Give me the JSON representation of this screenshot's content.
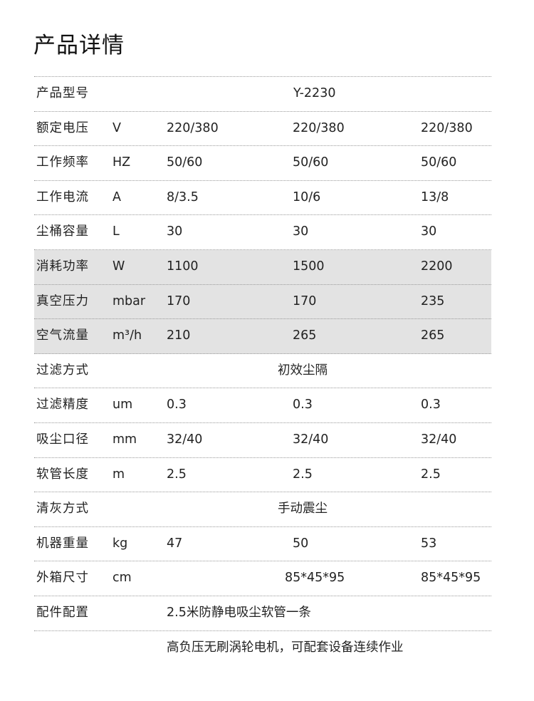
{
  "title": "产品详情",
  "rows": [
    {
      "label": "产品型号",
      "merged": "Y-2230",
      "type": "model"
    },
    {
      "label": "额定电压",
      "unit": "V",
      "values": [
        "220/380",
        "220/380",
        "220/380"
      ]
    },
    {
      "label": "工作频率",
      "unit": "HZ",
      "values": [
        "50/60",
        "50/60",
        "50/60"
      ]
    },
    {
      "label": "工作电流",
      "unit": "A",
      "values": [
        "8/3.5",
        "10/6",
        "13/8"
      ]
    },
    {
      "label": "尘桶容量",
      "unit": "L",
      "values": [
        "30",
        "30",
        "30"
      ]
    },
    {
      "label": "消耗功率",
      "unit": "W",
      "values": [
        "1100",
        "1500",
        "2200"
      ],
      "shaded": true
    },
    {
      "label": "真空压力",
      "unit": "mbar",
      "values": [
        "170",
        "170",
        "235"
      ],
      "shaded": true
    },
    {
      "label": "空气流量",
      "unit": "m³/h",
      "values": [
        "210",
        "265",
        "265"
      ],
      "shaded": true
    },
    {
      "label": "过滤方式",
      "merged": "初效尘隔"
    },
    {
      "label": "过滤精度",
      "unit": "um",
      "values": [
        "0.3",
        "0.3",
        "0.3"
      ]
    },
    {
      "label": "吸尘口径",
      "unit": "mm",
      "values": [
        "32/40",
        "32/40",
        "32/40"
      ]
    },
    {
      "label": "软管长度",
      "unit": "m",
      "values": [
        "2.5",
        "2.5",
        "2.5"
      ]
    },
    {
      "label": "清灰方式",
      "merged": "手动震尘"
    },
    {
      "label": "机器重量",
      "unit": "kg",
      "values": [
        "47",
        "50",
        "53"
      ]
    },
    {
      "label": "外箱尺寸",
      "unit": "cm",
      "values": [
        "",
        "85*45*95",
        "85*45*95"
      ]
    },
    {
      "label": "配件配置",
      "wide": "2.5米防静电吸尘软管一条"
    },
    {
      "label": "",
      "wide": "高负压无刷涡轮电机，可配套设备连续作业"
    }
  ],
  "colors": {
    "shade": "#e3e3e3",
    "divider": "#999999"
  }
}
